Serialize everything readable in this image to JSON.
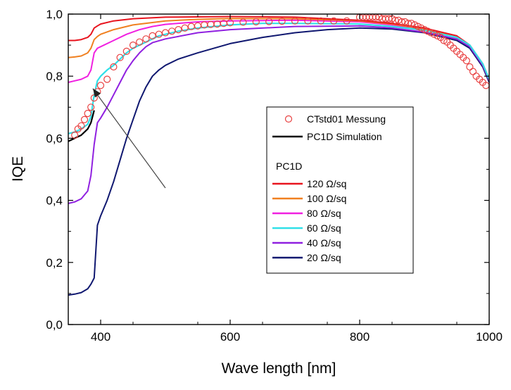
{
  "chart_data": {
    "type": "line",
    "xlabel": "Wave length [nm]",
    "ylabel": "IQE",
    "xlim": [
      350,
      1000
    ],
    "ylim": [
      0.0,
      1.0
    ],
    "x_ticks": [
      400,
      600,
      800,
      1000
    ],
    "x_tick_labels": [
      "400",
      "600",
      "800",
      "1000"
    ],
    "y_ticks": [
      0.0,
      0.2,
      0.4,
      0.6,
      0.8,
      1.0
    ],
    "y_tick_labels": [
      "0,0",
      "0,2",
      "0,4",
      "0,6",
      "0,8",
      "1,0"
    ],
    "grid": false,
    "legend": {
      "placement": "center-right",
      "measurement_label": "CTstd01 Messung",
      "simulation_label": "PC1D Simulation",
      "group_title": "PC1D",
      "entries": [
        {
          "text": "120 Ω/sq",
          "color": "#e8141e"
        },
        {
          "text": "100 Ω/sq",
          "color": "#f08020"
        },
        {
          "text": "80  Ω/sq",
          "color": "#f020e0"
        },
        {
          "text": "60 Ω/sq",
          "color": "#30e0e8"
        },
        {
          "text": "40 Ω/sq",
          "color": "#9020e0"
        },
        {
          "text": "20 Ω/sq",
          "color": "#101870"
        }
      ]
    },
    "annotation": {
      "type": "arrow",
      "from": [
        500,
        0.44
      ],
      "to": [
        388,
        0.76
      ]
    },
    "series": [
      {
        "name": "CTstd01 Messung",
        "style": "circles",
        "color": "#e84040",
        "x": [
          360,
          365,
          370,
          375,
          380,
          385,
          390,
          395,
          400,
          410,
          420,
          430,
          440,
          450,
          460,
          470,
          480,
          490,
          500,
          510,
          520,
          530,
          540,
          550,
          560,
          570,
          580,
          590,
          600,
          620,
          640,
          660,
          680,
          700,
          720,
          740,
          760,
          780,
          800,
          805,
          810,
          815,
          820,
          825,
          830,
          835,
          840,
          845,
          850,
          855,
          860,
          865,
          870,
          875,
          880,
          885,
          890,
          895,
          900,
          905,
          910,
          915,
          920,
          925,
          930,
          935,
          940,
          945,
          950,
          955,
          960,
          965,
          970,
          975,
          980,
          985,
          990,
          995
        ],
        "y": [
          0.61,
          0.63,
          0.64,
          0.66,
          0.68,
          0.7,
          0.73,
          0.75,
          0.77,
          0.79,
          0.83,
          0.86,
          0.88,
          0.9,
          0.91,
          0.92,
          0.93,
          0.935,
          0.94,
          0.945,
          0.95,
          0.955,
          0.96,
          0.962,
          0.965,
          0.967,
          0.968,
          0.97,
          0.972,
          0.974,
          0.975,
          0.976,
          0.977,
          0.978,
          0.978,
          0.978,
          0.978,
          0.978,
          0.99,
          0.99,
          0.99,
          0.99,
          0.99,
          0.99,
          0.99,
          0.985,
          0.985,
          0.985,
          0.985,
          0.98,
          0.98,
          0.975,
          0.975,
          0.97,
          0.97,
          0.965,
          0.96,
          0.955,
          0.95,
          0.945,
          0.94,
          0.935,
          0.93,
          0.925,
          0.915,
          0.91,
          0.9,
          0.89,
          0.88,
          0.87,
          0.86,
          0.85,
          0.83,
          0.815,
          0.8,
          0.79,
          0.78,
          0.77
        ]
      },
      {
        "name": "PC1D Simulation",
        "color": "#000000",
        "width": 2.2,
        "x": [
          350,
          360,
          370,
          380,
          385,
          390
        ],
        "y": [
          0.59,
          0.6,
          0.61,
          0.63,
          0.65,
          0.69
        ]
      },
      {
        "name": "120 Ω/sq",
        "color": "#e8141e",
        "width": 2,
        "x": [
          350,
          360,
          370,
          380,
          385,
          390,
          395,
          400,
          420,
          450,
          500,
          600,
          700,
          800,
          850,
          900,
          950,
          970,
          980,
          990,
          1000
        ],
        "y": [
          0.915,
          0.915,
          0.918,
          0.925,
          0.935,
          0.955,
          0.962,
          0.968,
          0.978,
          0.985,
          0.99,
          0.992,
          0.99,
          0.98,
          0.97,
          0.955,
          0.93,
          0.9,
          0.87,
          0.84,
          0.79
        ]
      },
      {
        "name": "100 Ω/sq",
        "color": "#f08020",
        "width": 2,
        "x": [
          350,
          360,
          370,
          380,
          385,
          390,
          395,
          400,
          420,
          450,
          500,
          550,
          600,
          700,
          800,
          850,
          900,
          950,
          970,
          980,
          990,
          1000
        ],
        "y": [
          0.86,
          0.862,
          0.865,
          0.875,
          0.89,
          0.918,
          0.928,
          0.935,
          0.95,
          0.965,
          0.978,
          0.983,
          0.986,
          0.985,
          0.978,
          0.968,
          0.952,
          0.925,
          0.9,
          0.87,
          0.84,
          0.79
        ]
      },
      {
        "name": "80  Ω/sq",
        "color": "#f020e0",
        "width": 2,
        "x": [
          350,
          360,
          370,
          380,
          385,
          390,
          395,
          400,
          420,
          440,
          460,
          480,
          500,
          550,
          600,
          700,
          800,
          850,
          900,
          950,
          970,
          980,
          990,
          1000
        ],
        "y": [
          0.78,
          0.785,
          0.79,
          0.8,
          0.82,
          0.875,
          0.89,
          0.895,
          0.915,
          0.935,
          0.95,
          0.96,
          0.967,
          0.975,
          0.978,
          0.98,
          0.975,
          0.965,
          0.95,
          0.925,
          0.9,
          0.87,
          0.84,
          0.79
        ]
      },
      {
        "name": "60 Ω/sq",
        "color": "#30e0e8",
        "width": 2.2,
        "x": [
          350,
          360,
          370,
          380,
          385,
          390,
          395,
          400,
          410,
          420,
          430,
          440,
          450,
          460,
          470,
          480,
          490,
          500,
          520,
          550,
          600,
          650,
          700,
          800,
          850,
          900,
          950,
          970,
          980,
          990,
          1000
        ],
        "y": [
          0.615,
          0.62,
          0.63,
          0.645,
          0.67,
          0.74,
          0.785,
          0.8,
          0.82,
          0.835,
          0.855,
          0.875,
          0.89,
          0.9,
          0.91,
          0.92,
          0.93,
          0.935,
          0.945,
          0.955,
          0.965,
          0.97,
          0.97,
          0.968,
          0.96,
          0.948,
          0.925,
          0.9,
          0.87,
          0.84,
          0.79
        ]
      },
      {
        "name": "40 Ω/sq",
        "color": "#9020e0",
        "width": 2,
        "x": [
          350,
          360,
          370,
          380,
          385,
          390,
          395,
          400,
          410,
          420,
          430,
          440,
          450,
          460,
          470,
          480,
          500,
          550,
          600,
          700,
          800,
          850,
          900,
          950,
          970,
          980,
          990,
          1000
        ],
        "y": [
          0.39,
          0.395,
          0.405,
          0.43,
          0.48,
          0.58,
          0.65,
          0.665,
          0.7,
          0.74,
          0.78,
          0.82,
          0.85,
          0.875,
          0.895,
          0.908,
          0.92,
          0.94,
          0.95,
          0.96,
          0.962,
          0.955,
          0.942,
          0.92,
          0.895,
          0.865,
          0.835,
          0.785
        ]
      },
      {
        "name": "20 Ω/sq",
        "color": "#101870",
        "width": 2,
        "x": [
          350,
          360,
          370,
          380,
          385,
          390,
          395,
          400,
          410,
          420,
          430,
          440,
          450,
          460,
          470,
          480,
          490,
          500,
          520,
          550,
          600,
          650,
          700,
          750,
          800,
          850,
          900,
          950,
          970,
          980,
          990,
          1000
        ],
        "y": [
          0.095,
          0.098,
          0.103,
          0.115,
          0.13,
          0.15,
          0.32,
          0.35,
          0.4,
          0.46,
          0.53,
          0.6,
          0.66,
          0.72,
          0.765,
          0.8,
          0.82,
          0.835,
          0.855,
          0.875,
          0.905,
          0.925,
          0.94,
          0.95,
          0.955,
          0.952,
          0.94,
          0.915,
          0.89,
          0.86,
          0.83,
          0.78
        ]
      }
    ]
  }
}
